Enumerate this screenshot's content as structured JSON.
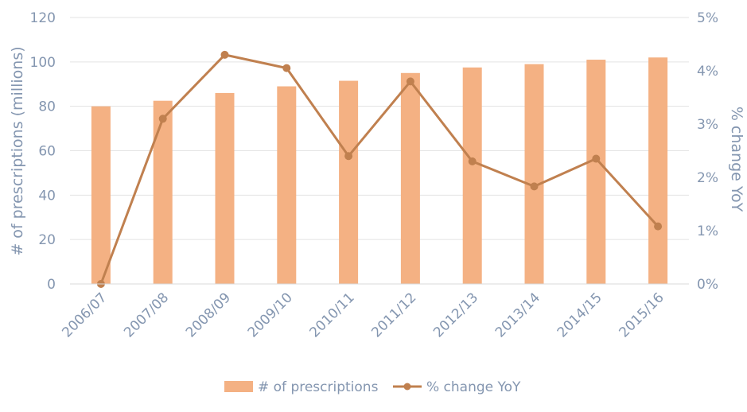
{
  "chart_data": {
    "type": "bar+line",
    "categories": [
      "2006/07",
      "2007/08",
      "2008/09",
      "2009/10",
      "2010/11",
      "2011/12",
      "2012/13",
      "2013/14",
      "2014/15",
      "2015/16"
    ],
    "series": [
      {
        "name": "# of prescriptions",
        "type": "bar",
        "axis": "left",
        "values": [
          80,
          82.5,
          86,
          89,
          91.5,
          95,
          97.5,
          99,
          101,
          102
        ]
      },
      {
        "name": "% change YoY",
        "type": "line",
        "axis": "right",
        "values": [
          0.0,
          3.1,
          4.3,
          4.05,
          2.4,
          3.8,
          2.3,
          1.83,
          2.35,
          1.08
        ]
      }
    ],
    "ylabel": "# of prescriptions (millions)",
    "y2label": "% change YoY",
    "ylim": [
      0,
      120
    ],
    "y2lim": [
      0,
      5
    ],
    "yticks": [
      "0",
      "20",
      "40",
      "60",
      "80",
      "100",
      "120"
    ],
    "y2ticks": [
      "0%",
      "1%",
      "2%",
      "3%",
      "4%",
      "5%"
    ],
    "grid": true,
    "legend_position": "bottom",
    "colors": {
      "bar": "#f4b183",
      "line": "#c0804f",
      "grid": "#e3e3e3",
      "text": "#8496b0"
    }
  }
}
